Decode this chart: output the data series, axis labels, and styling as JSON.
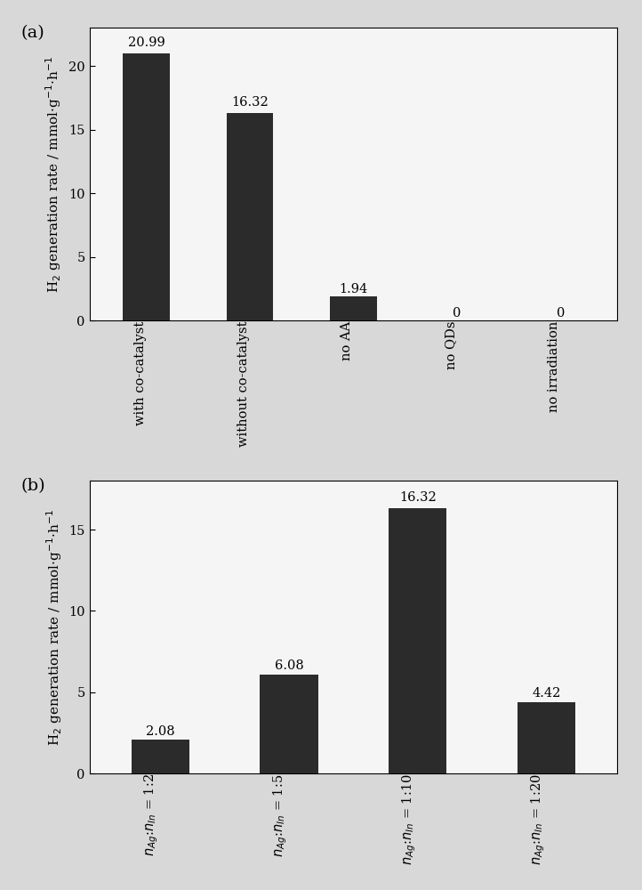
{
  "panel_a": {
    "categories": [
      "with co-catalyst",
      "without co-catalyst",
      "no AA",
      "no QDs",
      "no irradiation"
    ],
    "values": [
      20.99,
      16.32,
      1.94,
      0,
      0
    ],
    "bar_color": "#2b2b2b",
    "ylim": [
      0,
      23
    ],
    "yticks": [
      0,
      5,
      10,
      15,
      20
    ],
    "ylabel": "H$_2$ generation rate / mmol$\\cdot$g$^{-1}$$\\cdot$h$^{-1}$",
    "label": "(a)",
    "value_labels": [
      "20.99",
      "16.32",
      "1.94",
      "0",
      "0"
    ],
    "value_offsets": [
      0.35,
      0.35,
      0.07,
      0.07,
      0.07
    ]
  },
  "panel_b": {
    "categories": [
      "$n_{Ag}$:$n_{In}$ = 1:2",
      "$n_{Ag}$:$n_{In}$ = 1:5",
      "$n_{Ag}$:$n_{In}$ = 1:10",
      "$n_{Ag}$:$n_{In}$ = 1:20"
    ],
    "values": [
      2.08,
      6.08,
      16.32,
      4.42
    ],
    "bar_color": "#2b2b2b",
    "ylim": [
      0,
      18
    ],
    "yticks": [
      0,
      5,
      10,
      15
    ],
    "ylabel": "H$_2$ generation rate / mmol$\\cdot$g$^{-1}$$\\cdot$h$^{-1}$",
    "label": "(b)",
    "value_labels": [
      "2.08",
      "6.08",
      "16.32",
      "4.42"
    ],
    "value_offsets": [
      0.15,
      0.15,
      0.25,
      0.15
    ]
  },
  "figure_bg": "#d8d8d8",
  "axes_bg": "#f5f5f5",
  "bar_width": 0.45,
  "tick_label_fontsize": 10.5,
  "axis_label_fontsize": 11,
  "value_label_fontsize": 10.5,
  "panel_label_fontsize": 14
}
